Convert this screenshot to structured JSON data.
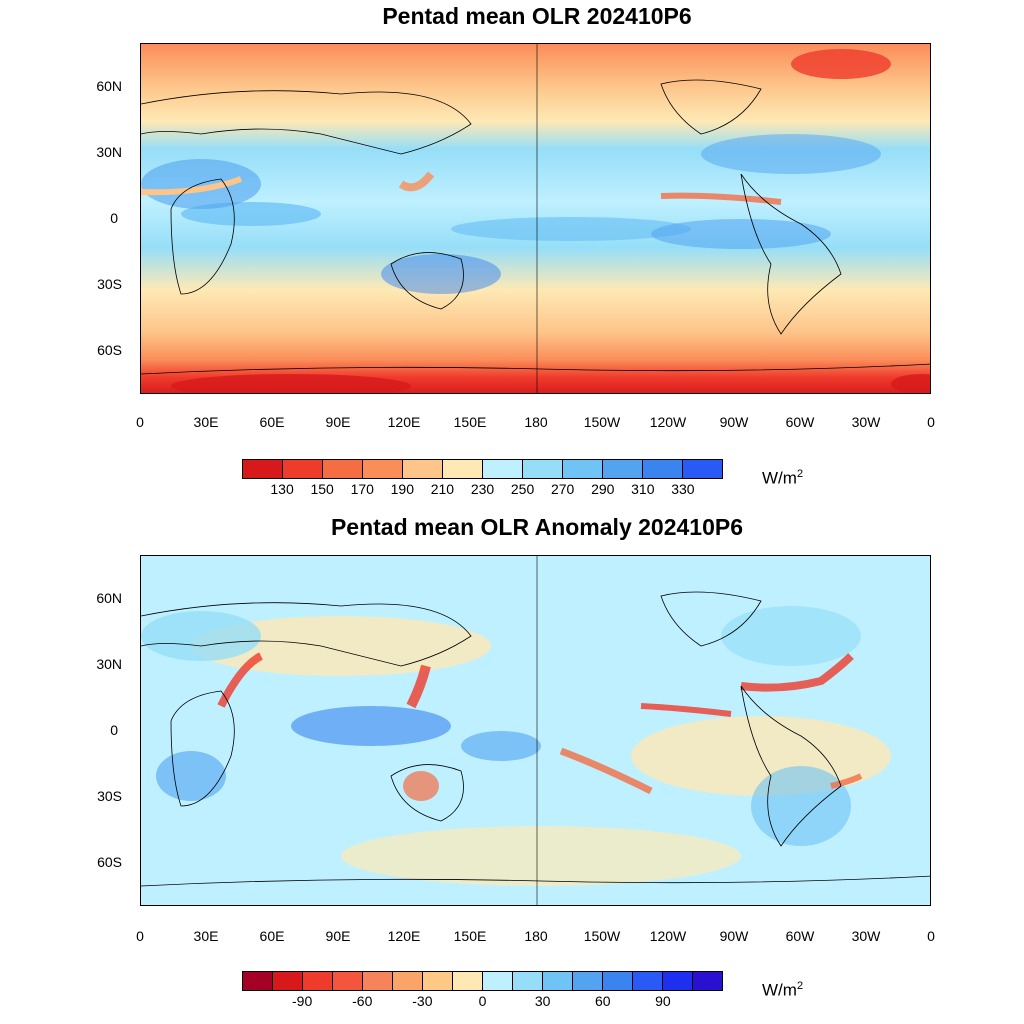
{
  "panels": [
    {
      "title": "Pentad mean OLR 202410P6",
      "lat_labels": [
        "60N",
        "30N",
        "0",
        "30S",
        "60S"
      ],
      "lon_labels": [
        "0",
        "30E",
        "60E",
        "90E",
        "120E",
        "150E",
        "180",
        "150W",
        "120W",
        "90W",
        "60W",
        "30W",
        "0"
      ],
      "colorbar": {
        "colors": [
          "#d7191c",
          "#ef3b2c",
          "#f46d43",
          "#fb8d59",
          "#fdc58a",
          "#fee9b5",
          "#bff0ff",
          "#96def8",
          "#6fc3f5",
          "#52a4f0",
          "#3a84ef",
          "#2a5af5"
        ],
        "labels": [
          "130",
          "150",
          "170",
          "190",
          "210",
          "230",
          "250",
          "270",
          "290",
          "310",
          "330"
        ]
      },
      "unit": "W/m",
      "unit_sup": "2"
    },
    {
      "title": "Pentad mean OLR Anomaly 202410P6",
      "lat_labels": [
        "60N",
        "30N",
        "0",
        "30S",
        "60S"
      ],
      "lon_labels": [
        "0",
        "30E",
        "60E",
        "90E",
        "120E",
        "150E",
        "180",
        "150W",
        "120W",
        "90W",
        "60W",
        "30W",
        "0"
      ],
      "colorbar": {
        "colors": [
          "#a50026",
          "#d7191c",
          "#ef3b2c",
          "#f4553f",
          "#f7835b",
          "#fba468",
          "#fdc985",
          "#fee9b5",
          "#bff0ff",
          "#96def8",
          "#6fc3f5",
          "#52a4f0",
          "#3a84ef",
          "#2a5af5",
          "#1f2ff0",
          "#2a10d0"
        ],
        "labels": [
          "",
          "-90",
          "",
          "-60",
          "",
          "-30",
          "",
          "0",
          "",
          "30",
          "",
          "60",
          "",
          "90",
          ""
        ]
      },
      "unit": "W/m",
      "unit_sup": "2"
    }
  ]
}
